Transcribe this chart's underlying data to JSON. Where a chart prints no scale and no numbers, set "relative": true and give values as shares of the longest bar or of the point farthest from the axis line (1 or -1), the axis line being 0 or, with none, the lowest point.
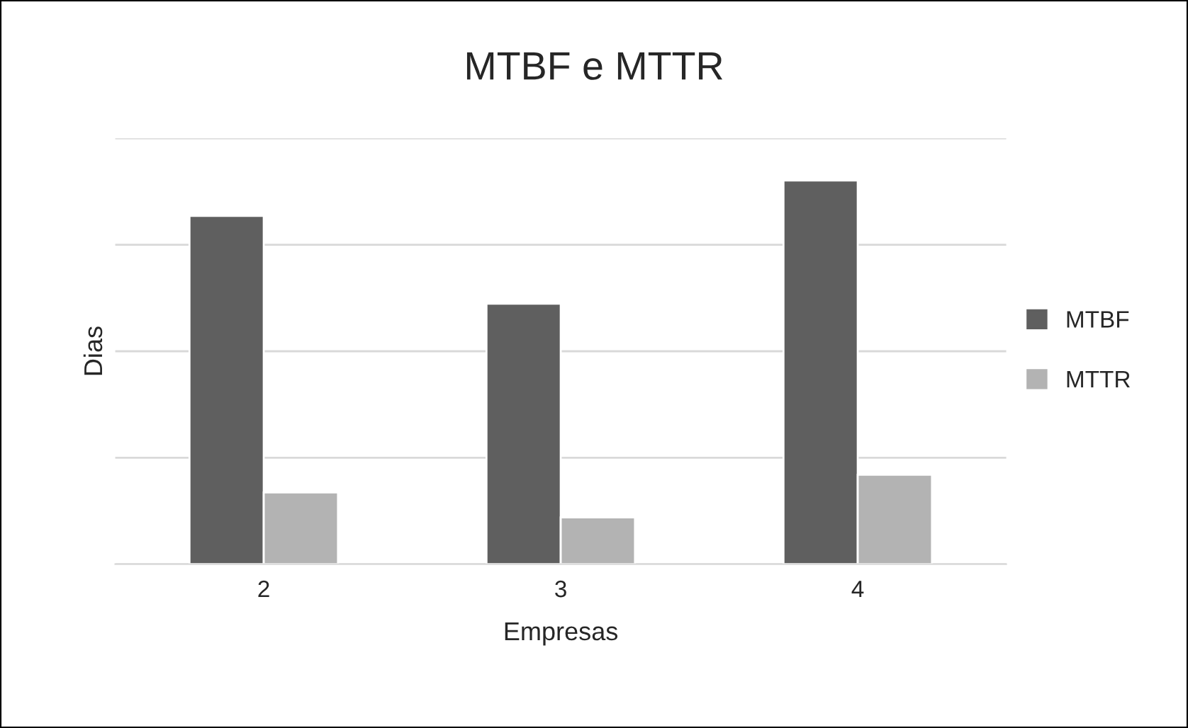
{
  "chart_data": {
    "type": "bar",
    "title": "MTBF e MTTR",
    "xlabel": "Empresas",
    "ylabel": "Dias",
    "relative": true,
    "categories": [
      "2",
      "3",
      "4"
    ],
    "series": [
      {
        "name": "MTBF",
        "color": "#5f5f5f",
        "values": [
          0.908,
          0.679,
          1
        ]
      },
      {
        "name": "MTTR",
        "color": "#b3b3b3",
        "values": [
          0.187,
          0.122,
          0.233
        ]
      }
    ],
    "grid": "y",
    "legend": "right"
  }
}
